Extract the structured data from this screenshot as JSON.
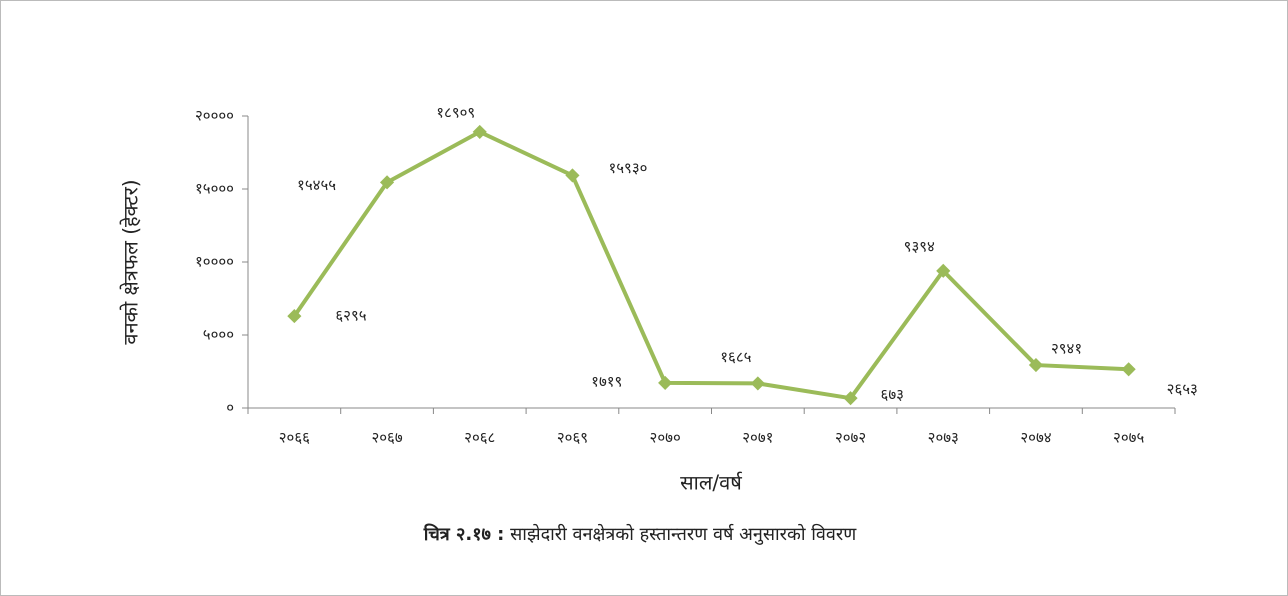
{
  "chart_data": {
    "type": "line",
    "y_label": "वनको क्षेत्रफल (हेक्टर)",
    "x_label": "साल/वर्ष",
    "caption": {
      "label": "चित्र २.१७ :",
      "text": "साझेदारी वनक्षेत्रको हस्तान्तरण वर्ष अनुसारको विवरण"
    },
    "categories": [
      "२०६६",
      "२०६७",
      "२०६८",
      "२०६९",
      "२०७०",
      "२०७१",
      "२०७२",
      "२०७३",
      "२०७४",
      "२०७५"
    ],
    "series": [
      {
        "color": "#9bbb59",
        "values": [
          6295,
          15455,
          18909,
          15930,
          1719,
          1685,
          673,
          9394,
          2941,
          2653
        ],
        "value_labels": [
          "६२९५",
          "१५४५५",
          "१८९०९",
          "१५९३०",
          "१७१९",
          "१६८५",
          "६७३",
          "९३९४",
          "२९४१",
          "२६५३"
        ]
      }
    ],
    "ylim": [
      0,
      20000
    ],
    "yticks": [
      {
        "value": 0,
        "label": "०"
      },
      {
        "value": 5000,
        "label": "५०००"
      },
      {
        "value": 10000,
        "label": "१००००"
      },
      {
        "value": 15000,
        "label": "१५०००"
      },
      {
        "value": 20000,
        "label": "२००००"
      }
    ]
  }
}
